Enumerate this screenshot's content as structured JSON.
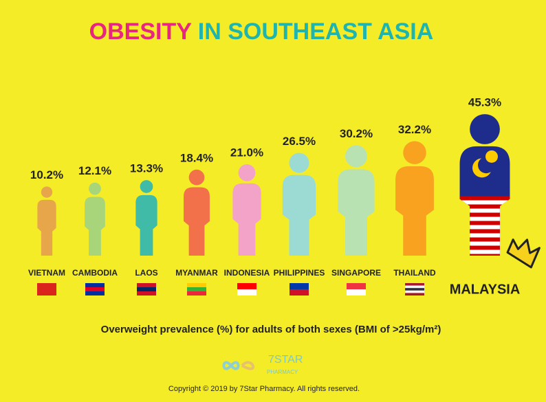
{
  "chart_data": {
    "type": "pictogram",
    "title": "OBESITY IN SOUTHEAST ASIA",
    "title_colors": [
      "#e8257f",
      "#1fb5ad"
    ],
    "categories": [
      "VIETNAM",
      "CAMBODIA",
      "LAOS",
      "MYANMAR",
      "INDONESIA",
      "PHILIPPINES",
      "SINGAPORE",
      "THAILAND",
      "MALAYSIA"
    ],
    "values": [
      10.2,
      12.1,
      13.3,
      18.4,
      21.0,
      26.5,
      30.2,
      32.2,
      45.3
    ],
    "value_labels": [
      "10.2%",
      "12.1%",
      "13.3%",
      "18.4%",
      "21.0%",
      "26.5%",
      "30.2%",
      "32.2%",
      "45.3%"
    ],
    "colors": [
      "#e8a64b",
      "#a8d57a",
      "#3fbba8",
      "#f2714a",
      "#f3a3c7",
      "#9cdbd3",
      "#b8e2b1",
      "#f8a21f",
      "#1e2d8c"
    ],
    "subtitle": "Overweight prevalence (%) for adults of both sexes (BMI of >25kg/m²)",
    "logo": {
      "name": "7STAR",
      "sub": "PHARMACY"
    },
    "copyright": "Copyright © 2019 by 7Star Pharmacy. All rights reserved."
  }
}
